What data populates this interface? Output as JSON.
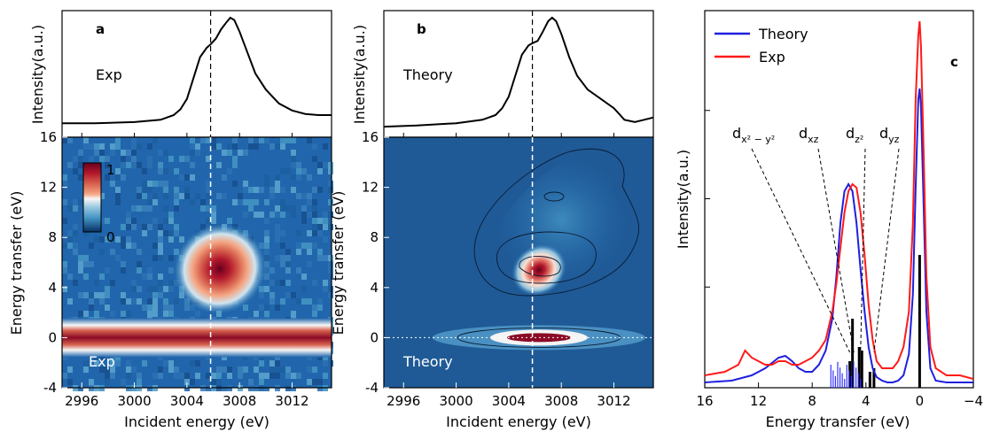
{
  "chart_data": [
    {
      "panel": "a",
      "type": "heatmap",
      "variant": "Exp",
      "top_label": "Exp",
      "map_label": "Exp",
      "xlabel": "Incident energy (eV)",
      "ylabel": "Energy transfer (eV)",
      "top_ylabel": "Intensity(a.u.)",
      "xlim": [
        2994.5,
        3015
      ],
      "ylim": [
        -4,
        16
      ],
      "xticks": [
        2996,
        3000,
        3004,
        3008,
        3012
      ],
      "yticks": [
        -4,
        0,
        4,
        8,
        12,
        16
      ],
      "dashed_line_x": 3005.8,
      "colorbar": {
        "min": 0,
        "max": 1,
        "ticks": [
          "1",
          "0"
        ]
      },
      "colormap": [
        "#053061",
        "#2166ac",
        "#4393c3",
        "#92c5de",
        "#f7f7f7",
        "#f4a582",
        "#d6604d",
        "#b2182b",
        "#67001f"
      ],
      "elastic_line_y": 0,
      "feature": {
        "center_x": 3006.5,
        "center_y": 5.5,
        "sigma_x": 1.6,
        "sigma_y": 1.6,
        "peak": 1.0
      },
      "top_spectrum": {
        "x": [
          2994.5,
          2997,
          3000,
          3002,
          3003,
          3003.5,
          3004,
          3004.5,
          3005,
          3005.5,
          3005.8,
          3006.2,
          3006.6,
          3007,
          3007.3,
          3007.6,
          3008,
          3008.6,
          3009.2,
          3010,
          3011,
          3012,
          3013,
          3014,
          3015
        ],
        "y": [
          0.09,
          0.09,
          0.1,
          0.12,
          0.16,
          0.21,
          0.3,
          0.48,
          0.66,
          0.74,
          0.77,
          0.82,
          0.9,
          0.96,
          1.0,
          0.98,
          0.88,
          0.7,
          0.52,
          0.38,
          0.26,
          0.2,
          0.17,
          0.16,
          0.16
        ]
      }
    },
    {
      "panel": "b",
      "type": "heatmap",
      "variant": "Theory",
      "top_label": "Theory",
      "map_label": "Theory",
      "xlabel": "Incident energy (eV)",
      "ylabel": "Energy transfer (eV)",
      "top_ylabel": "Intensity(a.u.)",
      "xlim": [
        2994.5,
        3015
      ],
      "ylim": [
        -4,
        16
      ],
      "xticks": [
        2996,
        3000,
        3004,
        3008,
        3012
      ],
      "yticks": [
        -4,
        0,
        4,
        8,
        12,
        16
      ],
      "dashed_line_x": 3005.8,
      "dotted_line_y": 0,
      "feature": {
        "center_x": 3006.3,
        "center_y": 5.4,
        "sigma_x": 1.0,
        "sigma_y": 0.9,
        "peak": 1.0
      },
      "top_spectrum": {
        "x": [
          2994.5,
          2997,
          3000,
          3002,
          3003,
          3003.5,
          3004,
          3004.5,
          3005,
          3005.5,
          3005.8,
          3006.2,
          3006.6,
          3007,
          3007.3,
          3007.6,
          3008,
          3008.6,
          3009.2,
          3010,
          3011,
          3012,
          3012.8,
          3013.6,
          3014.3,
          3015
        ],
        "y": [
          0.06,
          0.07,
          0.09,
          0.12,
          0.16,
          0.22,
          0.32,
          0.5,
          0.68,
          0.76,
          0.78,
          0.8,
          0.88,
          0.97,
          1.0,
          0.97,
          0.86,
          0.66,
          0.5,
          0.38,
          0.3,
          0.22,
          0.12,
          0.1,
          0.12,
          0.14
        ]
      }
    },
    {
      "panel": "c",
      "type": "line",
      "xlabel": "Energy transfer (eV)",
      "ylabel": "Intensity(a.u.)",
      "xlim": [
        16,
        -4
      ],
      "xticks": [
        16,
        12,
        8,
        4,
        0,
        -4
      ],
      "ylim": [
        0,
        1.05
      ],
      "legend": "top-left",
      "series": [
        {
          "name": "Theory",
          "color": "#1f1fe0",
          "x": [
            16,
            14,
            12.5,
            11.5,
            10.5,
            10,
            9.5,
            9,
            8.5,
            8,
            7.5,
            7,
            6.5,
            6.2,
            5.9,
            5.6,
            5.3,
            5.0,
            4.7,
            4.4,
            4.1,
            3.8,
            3.5,
            3.2,
            2.8,
            2.4,
            2.0,
            1.6,
            1.2,
            0.8,
            0.5,
            0.3,
            0.1,
            0,
            -0.1,
            -0.3,
            -0.5,
            -0.8,
            -1.2,
            -2,
            -3,
            -4
          ],
          "y": [
            0.0,
            0.005,
            0.02,
            0.04,
            0.07,
            0.075,
            0.06,
            0.04,
            0.03,
            0.03,
            0.05,
            0.09,
            0.18,
            0.3,
            0.45,
            0.54,
            0.56,
            0.54,
            0.45,
            0.32,
            0.2,
            0.1,
            0.04,
            0.015,
            0.005,
            0.0,
            0.0,
            0.005,
            0.02,
            0.08,
            0.25,
            0.55,
            0.8,
            0.83,
            0.78,
            0.5,
            0.2,
            0.04,
            0.005,
            0.0,
            0.0,
            0.0
          ]
        },
        {
          "name": "Exp",
          "color": "#ff1a1a",
          "x": [
            16,
            14.5,
            13.5,
            13,
            12.5,
            12,
            11.5,
            11,
            10.5,
            10,
            9.5,
            9,
            8.5,
            8,
            7.5,
            7,
            6.5,
            6.2,
            5.9,
            5.6,
            5.3,
            5.0,
            4.7,
            4.4,
            4.1,
            3.8,
            3.5,
            3.2,
            2.8,
            2.4,
            2.0,
            1.6,
            1.2,
            0.8,
            0.5,
            0.3,
            0.1,
            0,
            -0.1,
            -0.3,
            -0.5,
            -0.8,
            -1.2,
            -2,
            -3,
            -4
          ],
          "y": [
            0.02,
            0.03,
            0.05,
            0.09,
            0.07,
            0.06,
            0.05,
            0.05,
            0.06,
            0.06,
            0.05,
            0.05,
            0.06,
            0.07,
            0.09,
            0.12,
            0.2,
            0.28,
            0.38,
            0.48,
            0.54,
            0.56,
            0.55,
            0.48,
            0.36,
            0.22,
            0.12,
            0.06,
            0.04,
            0.04,
            0.04,
            0.06,
            0.1,
            0.2,
            0.45,
            0.8,
            0.98,
            1.02,
            0.95,
            0.65,
            0.3,
            0.1,
            0.04,
            0.02,
            0.02,
            0.01
          ]
        }
      ],
      "sticks": [
        {
          "x": 5.2,
          "height": 0.06
        },
        {
          "x": 5.0,
          "height": 0.18
        },
        {
          "x": 4.5,
          "height": 0.1
        },
        {
          "x": 4.3,
          "height": 0.09
        },
        {
          "x": 3.7,
          "height": 0.03
        },
        {
          "x": 3.4,
          "height": 0.04
        },
        {
          "x": 0,
          "height": 0.36
        }
      ],
      "annotations": [
        {
          "label_main": "d",
          "label_sub": "x² − y²",
          "target_x": 5.2
        },
        {
          "label_main": "d",
          "label_sub": "xz",
          "target_x": 4.9
        },
        {
          "label_main": "d",
          "label_sub": "z²",
          "target_x": 4.4
        },
        {
          "label_main": "d",
          "label_sub": "yz",
          "target_x": 3.4
        }
      ]
    }
  ]
}
